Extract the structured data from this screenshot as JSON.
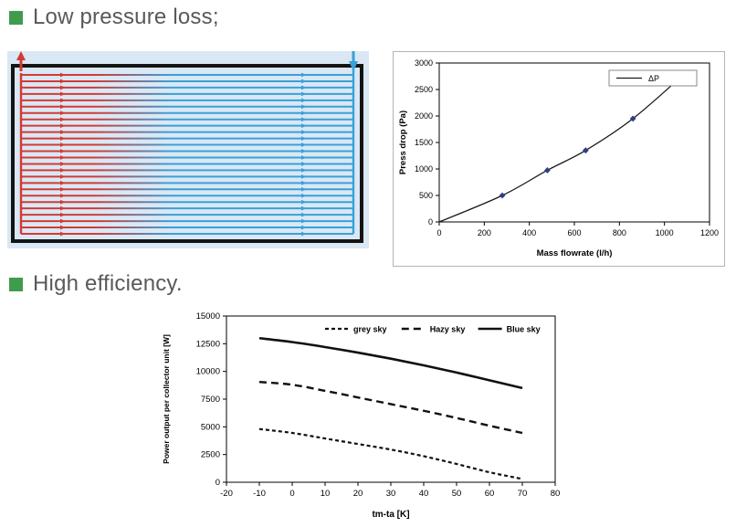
{
  "headings": [
    {
      "text": "Low pressure loss;",
      "bullet_color": "#3f9c4d"
    },
    {
      "text": "High efficiency.",
      "bullet_color": "#3f9c4d"
    }
  ],
  "diagram": {
    "label": "harp-absorber-flow-diagram",
    "bg_color": "#d9e8f4",
    "frame_color": "#141414",
    "hot_color": "#d43a34",
    "cold_color": "#3aa0d8",
    "tube_count": 26
  },
  "chart_data": [
    {
      "type": "line",
      "title": "",
      "xlabel": "Mass flowrate (l/h)",
      "ylabel": "Press drop (Pa)",
      "xlim": [
        0,
        1200
      ],
      "ylim": [
        0,
        3000
      ],
      "xticks": [
        0,
        200,
        400,
        600,
        800,
        1000,
        1200
      ],
      "yticks": [
        0,
        500,
        1000,
        1500,
        2000,
        2500,
        3000
      ],
      "grid": false,
      "legend_position": "top-right-box",
      "series": [
        {
          "name": "ΔP",
          "style": "solid",
          "color": "#1a1a1a",
          "marker": "diamond",
          "marker_color": "#2f3f7f",
          "marker_skip_first": true,
          "x": [
            0,
            280,
            480,
            650,
            860,
            1090
          ],
          "y": [
            0,
            500,
            975,
            1350,
            1950,
            2800
          ]
        }
      ]
    },
    {
      "type": "line",
      "title": "",
      "xlabel": "tm-ta [K]",
      "ylabel": "Power output per collector unit [W]",
      "xlim": [
        -20,
        80
      ],
      "ylim": [
        0,
        15000
      ],
      "xticks": [
        -20,
        -10,
        0,
        10,
        20,
        30,
        40,
        50,
        60,
        70,
        80
      ],
      "yticks": [
        0,
        2500,
        5000,
        7500,
        10000,
        12500,
        15000
      ],
      "grid": false,
      "legend_position": "top-row",
      "series": [
        {
          "name": "grey sky",
          "style": "dashed-short",
          "color": "#111111",
          "x": [
            -10,
            0,
            10,
            20,
            30,
            40,
            50,
            60,
            70
          ],
          "y": [
            4800,
            4450,
            3950,
            3450,
            2950,
            2350,
            1650,
            900,
            300
          ]
        },
        {
          "name": "Hazy sky",
          "style": "dashed",
          "color": "#111111",
          "x": [
            -10,
            0,
            10,
            20,
            30,
            40,
            50,
            60,
            70
          ],
          "y": [
            9050,
            8800,
            8250,
            7650,
            7050,
            6450,
            5800,
            5100,
            4450
          ]
        },
        {
          "name": "Blue sky",
          "style": "solid",
          "color": "#111111",
          "x": [
            -10,
            0,
            10,
            20,
            30,
            40,
            50,
            60,
            70
          ],
          "y": [
            13000,
            12650,
            12200,
            11700,
            11150,
            10550,
            9900,
            9200,
            8500
          ]
        }
      ]
    }
  ]
}
